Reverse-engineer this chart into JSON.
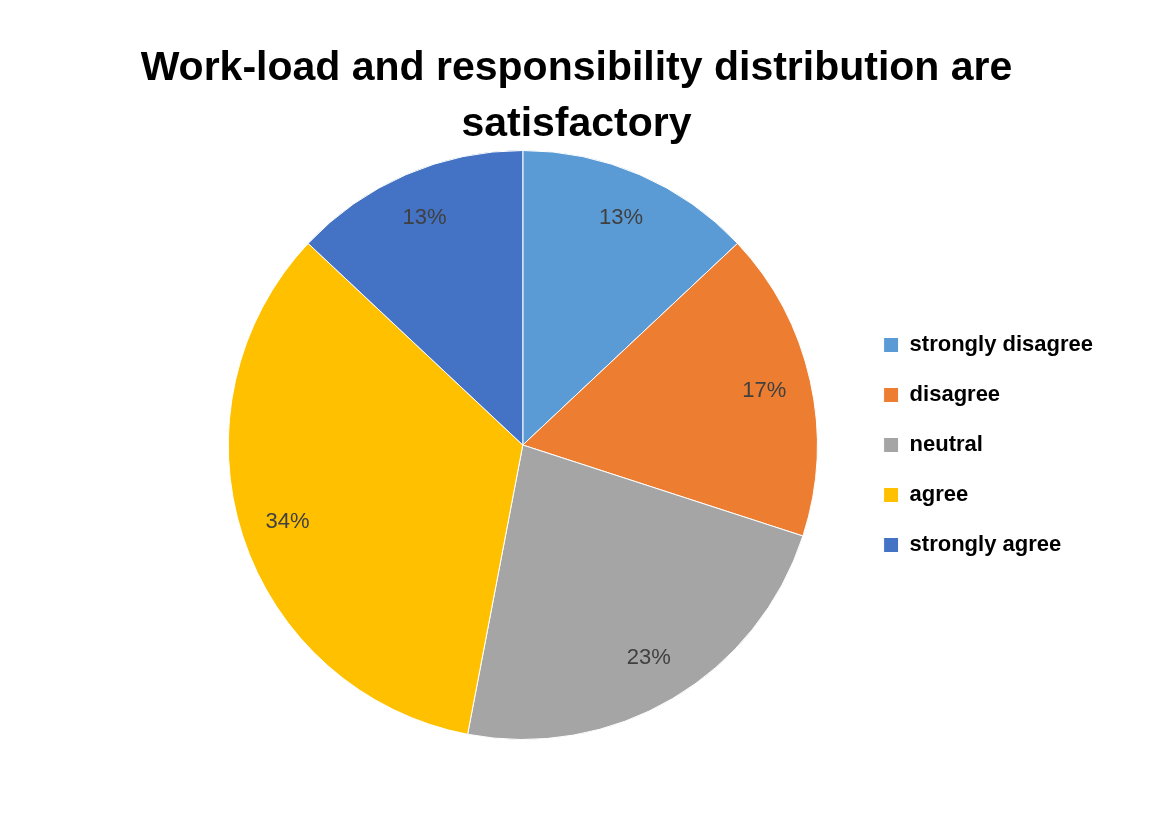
{
  "chart_data": {
    "type": "pie",
    "title": "Work-load and responsibility distribution are satisfactory",
    "categories": [
      "strongly disagree",
      "disagree",
      "neutral",
      "agree",
      "strongly agree"
    ],
    "values": [
      13,
      17,
      23,
      34,
      13
    ],
    "colors": [
      "#5b9bd5",
      "#ed7d31",
      "#a5a5a5",
      "#ffc000",
      "#4472c4"
    ],
    "value_labels": [
      "13%",
      "17%",
      "23%",
      "34%",
      "13%"
    ],
    "legend": "right"
  }
}
